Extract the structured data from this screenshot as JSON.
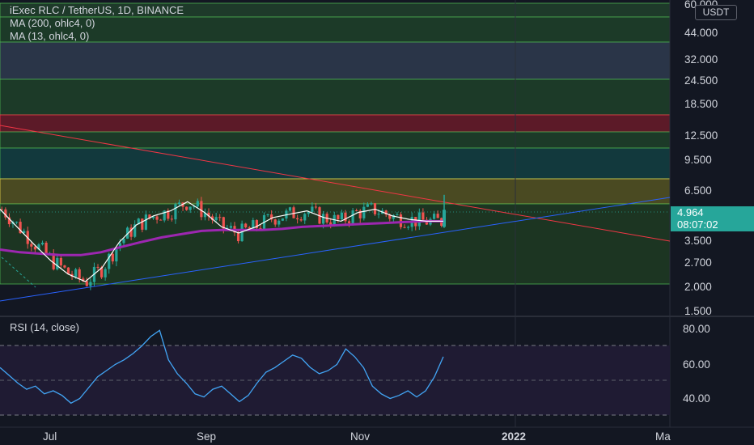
{
  "header": {
    "symbol_line": "iExec RLC / TetherUS, 1D, BINANCE",
    "ma200_label": "MA (200, ohlc4, 0)",
    "ma13_label": "MA (13, ohlc4, 0)",
    "currency_unit": "USDT"
  },
  "price_axis": {
    "ticks": [
      "60.000",
      "44.000",
      "32.000",
      "24.500",
      "18.500",
      "12.500",
      "9.500",
      "6.500",
      "3.500",
      "2.700",
      "2.000",
      "1.500"
    ],
    "last_price": "4.964",
    "countdown": "08:07:02"
  },
  "rsi_panel": {
    "label": "RSI (14, close)",
    "ticks": [
      "80.00",
      "60.00",
      "40.00"
    ],
    "upper_band": 70,
    "lower_band": 30
  },
  "time_axis": {
    "labels": [
      "Jul",
      "Sep",
      "Nov",
      "2022",
      "Ma"
    ]
  },
  "colors": {
    "background": "#131722",
    "up_candle": "#26a69a",
    "down_candle": "#ef5350",
    "ma200": "#9c27b0",
    "ma13": "#ffffff",
    "rsi_line": "#42a5f5",
    "resistance_line": "#f23645",
    "support_line": "#2962ff"
  },
  "chart_data": {
    "type": "candlestick",
    "title": "iExec RLC / TetherUS, 1D, BINANCE",
    "y_scale": "log",
    "ylim": [
      1.4,
      65
    ],
    "last_price": 4.964,
    "current_candle": {
      "open": 4.0,
      "high": 6.0,
      "low": 3.95,
      "close": 4.964
    },
    "ma13_values": [
      5.0,
      4.0,
      3.2,
      2.6,
      2.2,
      2.0,
      2.4,
      3.3,
      4.1,
      4.6,
      4.9,
      5.5,
      4.8,
      4.0,
      3.7,
      4.0,
      4.5,
      4.7,
      4.9,
      4.5,
      4.3,
      4.8,
      5.0,
      4.6,
      4.4,
      4.3,
      4.3
    ],
    "ma200_values": [
      3.0,
      2.9,
      2.85,
      2.8,
      2.8,
      2.9,
      3.1,
      3.3,
      3.5,
      3.65,
      3.8,
      3.85,
      3.85,
      3.85,
      3.9,
      4.0,
      4.05,
      4.1,
      4.15,
      4.2,
      4.25,
      4.3,
      4.3
    ],
    "rsi_values": [
      58,
      53,
      48,
      44,
      46,
      41,
      43,
      40,
      35,
      38,
      45,
      52,
      56,
      60,
      63,
      67,
      72,
      78,
      82,
      63,
      54,
      48,
      41,
      39,
      44,
      46,
      41,
      36,
      40,
      48,
      55,
      58,
      62,
      66,
      64,
      58,
      54,
      56,
      60,
      70,
      65,
      58,
      46,
      41,
      38,
      40,
      43,
      39,
      43,
      52,
      65
    ],
    "rsi_range": [
      20,
      90
    ]
  }
}
